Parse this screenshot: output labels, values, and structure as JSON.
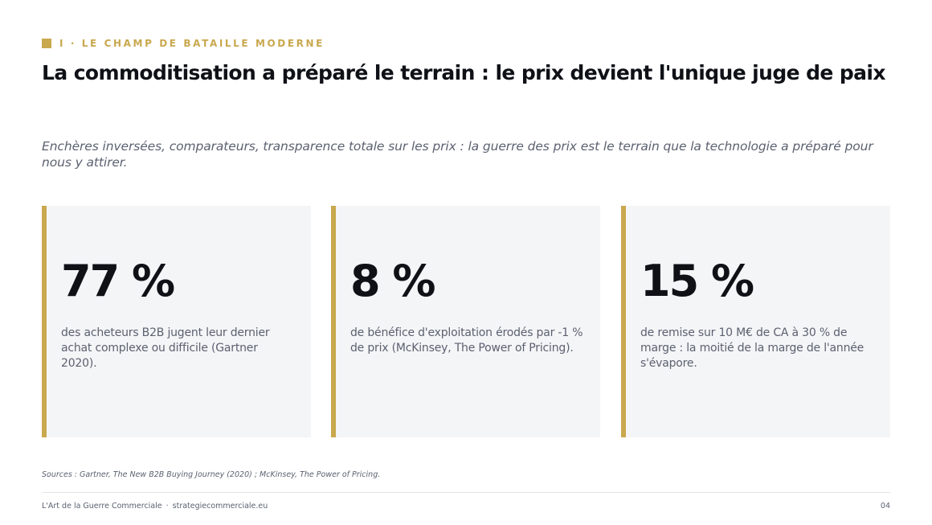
{
  "section": {
    "kicker": "I · LE CHAMP DE BATAILLE MODERNE"
  },
  "title": "La commoditisation a préparé le terrain : le prix devient l'unique juge de paix",
  "subtitle": "Enchères inversées, comparateurs, transparence totale sur les prix : la guerre des prix est le terrain que la technologie a préparé pour nous y attirer.",
  "stats": [
    {
      "value": "77 %",
      "description": "des acheteurs B2B jugent leur dernier achat complexe ou difficile (Gartner 2020)."
    },
    {
      "value": "8 %",
      "description": "de bénéfice d'exploitation érodés par -1 % de prix (McKinsey, The Power of Pricing)."
    },
    {
      "value": "15 %",
      "description": "de remise sur 10 M€ de CA à 30 % de marge : la moitié de la marge de l'année s'évapore."
    }
  ],
  "sources": "Sources : Gartner, The New B2B Buying Journey (2020) ; McKinsey, The Power of Pricing.",
  "footer": {
    "brand": "L'Art de la Guerre Commerciale",
    "separator": "·",
    "website": "strategiecommerciale.eu",
    "page_number": "04"
  },
  "colors": {
    "accent": "#c9a84e",
    "heading": "#0f1117",
    "body_text": "#5b6170",
    "card_background": "#f4f5f7"
  }
}
